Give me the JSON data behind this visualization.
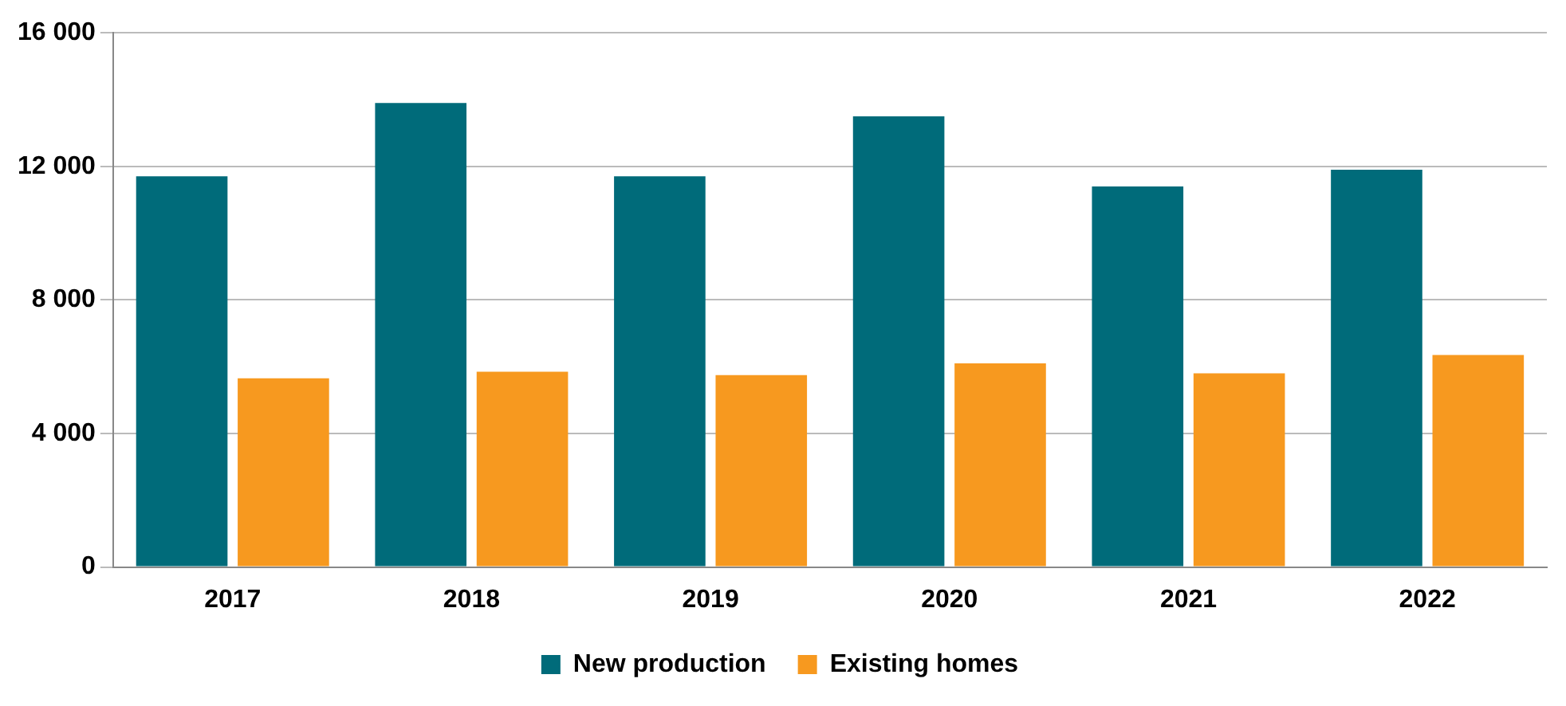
{
  "chart_data": {
    "type": "bar",
    "categories": [
      "2017",
      "2018",
      "2019",
      "2020",
      "2021",
      "2022"
    ],
    "series": [
      {
        "name": "New production",
        "color": "#006b7a",
        "values": [
          11700,
          13900,
          11700,
          13500,
          11400,
          11900
        ]
      },
      {
        "name": "Existing homes",
        "color": "#f7991f",
        "values": [
          5650,
          5850,
          5750,
          6100,
          5800,
          6350
        ]
      }
    ],
    "ylim": [
      0,
      16000
    ],
    "yticks": [
      {
        "value": 0,
        "label": "0"
      },
      {
        "value": 4000,
        "label": "4 000"
      },
      {
        "value": 8000,
        "label": "8 000"
      },
      {
        "value": 12000,
        "label": "12 000"
      },
      {
        "value": 16000,
        "label": "16 000"
      }
    ],
    "grid": "y",
    "legend": "bottom"
  }
}
